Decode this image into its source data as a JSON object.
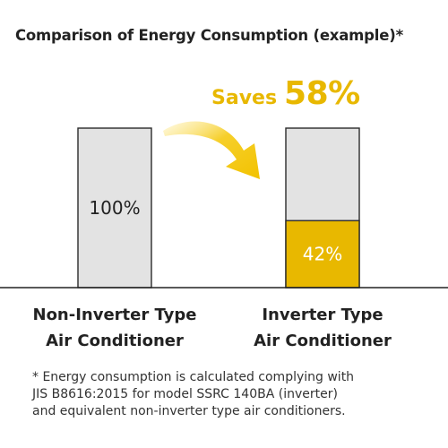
{
  "chart_data": {
    "type": "bar",
    "title": "Comparison of Energy Consumption (example)*",
    "categories": [
      [
        "Non-Inverter Type",
        "Air Conditioner"
      ],
      [
        "Inverter Type",
        "Air Conditioner"
      ]
    ],
    "values": [
      100,
      42
    ],
    "data_labels": [
      "100%",
      "42%"
    ],
    "ylim": [
      0,
      100
    ],
    "grid": false,
    "annotation": {
      "word": "Saves",
      "value": "58%",
      "from_category": 0,
      "to_category": 1
    },
    "footnote": [
      "* Energy consumption is calculated complying with",
      "JIS B8616:2015 for model SSRC 140BA (inverter)",
      "and equivalent non-inverter type air conditioners."
    ]
  },
  "colors": {
    "bar_empty": "#e3e3e3",
    "bar_border": "#2b2b2b",
    "bar_fill_highlight": "#e8b800",
    "arrow": "#f2c200",
    "accent_text": "#e8b800",
    "axis": "#222222"
  }
}
